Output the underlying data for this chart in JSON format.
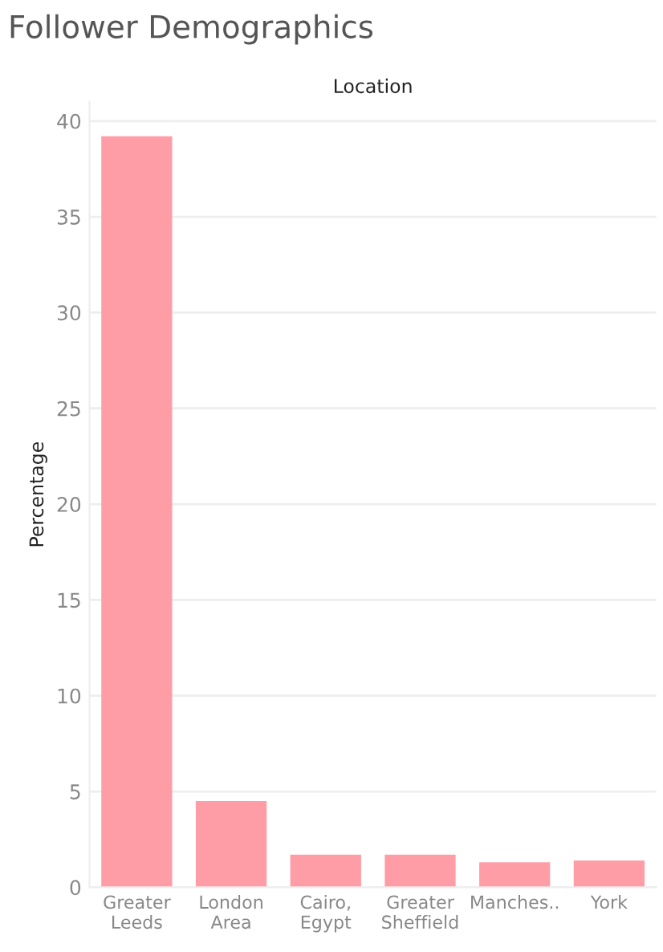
{
  "chart_data": {
    "type": "bar",
    "title": "Follower Demographics",
    "xlabel": "Location",
    "ylabel": "Percentage",
    "categories": [
      "Greater\nLeeds",
      "London\nArea",
      "Cairo,\nEgypt",
      "Greater\nSheffield",
      "Manches..",
      "York"
    ],
    "values": [
      39.2,
      4.5,
      1.7,
      1.7,
      1.3,
      1.4
    ],
    "color": "#ff9da7",
    "ylim": [
      0,
      41
    ],
    "yticks": [
      0,
      5,
      10,
      15,
      20,
      25,
      30,
      35,
      40
    ],
    "grid": "y"
  }
}
